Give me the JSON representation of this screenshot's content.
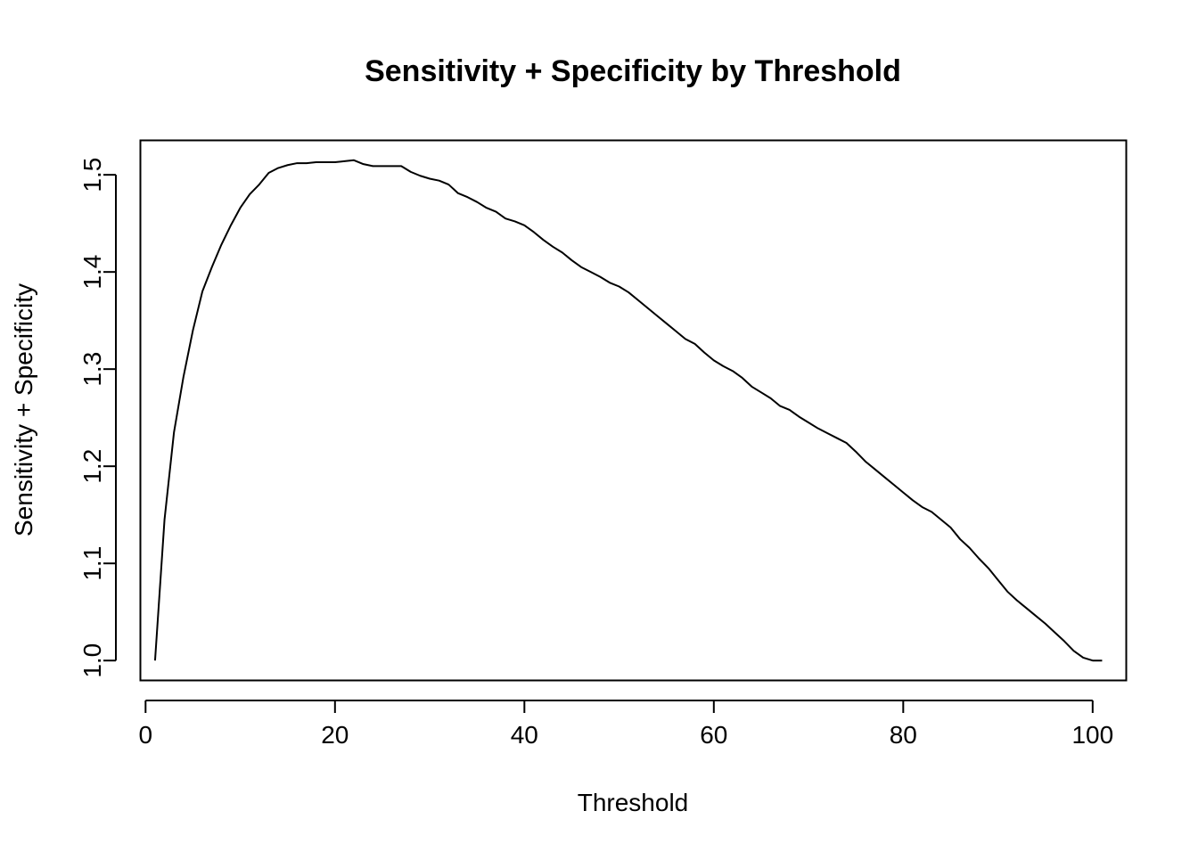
{
  "chart_data": {
    "type": "line",
    "title": "Sensitivity + Specificity by Threshold",
    "xlabel": "Threshold",
    "ylabel": "Sensitivity + Specificity",
    "xlim": [
      -0.5,
      103.5
    ],
    "ylim": [
      0.98,
      1.535
    ],
    "x_ticks": [
      0,
      20,
      40,
      60,
      80,
      100
    ],
    "y_ticks": [
      1.0,
      1.1,
      1.2,
      1.3,
      1.4,
      1.5
    ],
    "y_tick_labels": [
      "1.0",
      "1.1",
      "1.2",
      "1.3",
      "1.4",
      "1.5"
    ],
    "grid": false,
    "line_color": "#000000",
    "series": [
      {
        "x": [
          1,
          2,
          3,
          4,
          5,
          6,
          7,
          8,
          9,
          10,
          11,
          12,
          13,
          14,
          15,
          16,
          17,
          18,
          19,
          20,
          21,
          22,
          23,
          24,
          25,
          26,
          27,
          28,
          29,
          30,
          31,
          32,
          33,
          34,
          35,
          36,
          37,
          38,
          39,
          40,
          41,
          42,
          43,
          44,
          45,
          46,
          47,
          48,
          49,
          50,
          51,
          52,
          53,
          54,
          55,
          56,
          57,
          58,
          59,
          60,
          61,
          62,
          63,
          64,
          65,
          66,
          67,
          68,
          69,
          70,
          71,
          72,
          73,
          74,
          75,
          76,
          77,
          78,
          79,
          80,
          81,
          82,
          83,
          84,
          85,
          86,
          87,
          88,
          89,
          90,
          91,
          92,
          93,
          94,
          95,
          96,
          97,
          98,
          99,
          100,
          101
        ],
        "y": [
          1.0,
          1.145,
          1.235,
          1.292,
          1.34,
          1.38,
          1.405,
          1.428,
          1.448,
          1.466,
          1.48,
          1.49,
          1.502,
          1.507,
          1.51,
          1.512,
          1.512,
          1.513,
          1.513,
          1.513,
          1.514,
          1.515,
          1.511,
          1.509,
          1.509,
          1.509,
          1.509,
          1.503,
          1.499,
          1.496,
          1.494,
          1.49,
          1.481,
          1.477,
          1.472,
          1.466,
          1.462,
          1.455,
          1.452,
          1.448,
          1.441,
          1.433,
          1.426,
          1.42,
          1.412,
          1.405,
          1.4,
          1.395,
          1.389,
          1.385,
          1.379,
          1.371,
          1.363,
          1.355,
          1.347,
          1.339,
          1.331,
          1.326,
          1.317,
          1.309,
          1.303,
          1.298,
          1.291,
          1.282,
          1.276,
          1.27,
          1.262,
          1.258,
          1.251,
          1.245,
          1.239,
          1.234,
          1.229,
          1.224,
          1.215,
          1.205,
          1.197,
          1.189,
          1.181,
          1.173,
          1.165,
          1.158,
          1.153,
          1.145,
          1.137,
          1.125,
          1.116,
          1.105,
          1.095,
          1.083,
          1.071,
          1.062,
          1.054,
          1.046,
          1.038,
          1.029,
          1.02,
          1.01,
          1.003,
          1.0,
          1.0
        ]
      }
    ]
  }
}
